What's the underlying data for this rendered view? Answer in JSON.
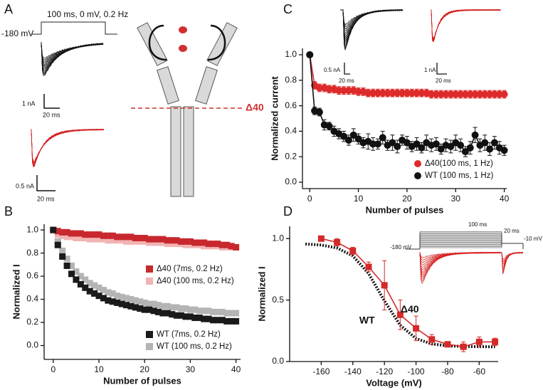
{
  "panel_a": {
    "label": "A",
    "protocol": "100 ms, 0 mV, 0.2 Hz",
    "holding": "-180 mV",
    "scale_labels": [
      "1 nA",
      "20 ms",
      "0.5 nA",
      "20 ms"
    ],
    "cut_label": "Δ40"
  },
  "chart_data": [
    {
      "type": "scatter",
      "panel_label": "B",
      "x_label": "Number of pulses",
      "y_label": "Normalized I",
      "x": [
        0,
        1,
        2,
        3,
        4,
        5,
        6,
        7,
        8,
        9,
        10,
        11,
        12,
        13,
        14,
        15,
        16,
        17,
        18,
        19,
        20,
        21,
        22,
        23,
        24,
        25,
        26,
        27,
        28,
        29,
        30,
        31,
        32,
        33,
        34,
        35,
        36,
        37,
        38,
        39,
        40
      ],
      "xlim": [
        -2,
        41
      ],
      "xticks": [
        0,
        10,
        20,
        30,
        40
      ],
      "ylim": [
        -0.12,
        1.05
      ],
      "yticks": [
        {
          "value": 0,
          "label": "0.0"
        },
        {
          "value": 0.2,
          "label": "0.2"
        },
        {
          "value": 0.4,
          "label": "0.4"
        },
        {
          "value": 0.6,
          "label": "0.6"
        },
        {
          "value": 0.8,
          "label": "0.8"
        },
        {
          "value": 1,
          "label": "1.0"
        }
      ],
      "series": [
        {
          "name": "Δ40 (100 ms, 0.2 Hz)",
          "color": "#f2b3b3",
          "marker": "square",
          "values": [
            1.0,
            0.96,
            0.95,
            0.94,
            0.94,
            0.93,
            0.93,
            0.93,
            0.92,
            0.92,
            0.92,
            0.92,
            0.91,
            0.91,
            0.91,
            0.91,
            0.9,
            0.9,
            0.9,
            0.9,
            0.9,
            0.89,
            0.89,
            0.89,
            0.89,
            0.88,
            0.88,
            0.88,
            0.88,
            0.87,
            0.87,
            0.87,
            0.87,
            0.86,
            0.86,
            0.86,
            0.86,
            0.85,
            0.85,
            0.85,
            0.85
          ]
        },
        {
          "name": "Δ40 (7ms, 0.2 Hz)",
          "color": "#c8282d",
          "marker": "square",
          "values": [
            1.0,
            0.99,
            0.98,
            0.98,
            0.97,
            0.97,
            0.97,
            0.96,
            0.96,
            0.96,
            0.96,
            0.95,
            0.95,
            0.95,
            0.94,
            0.94,
            0.94,
            0.94,
            0.93,
            0.93,
            0.93,
            0.92,
            0.92,
            0.92,
            0.92,
            0.91,
            0.91,
            0.91,
            0.9,
            0.9,
            0.9,
            0.89,
            0.89,
            0.89,
            0.88,
            0.88,
            0.88,
            0.87,
            0.87,
            0.86,
            0.85
          ]
        },
        {
          "name": "WT (100 ms, 0.2 Hz)",
          "color": "#b4b4b4",
          "marker": "square",
          "values": [
            1.0,
            0.9,
            0.82,
            0.75,
            0.69,
            0.64,
            0.6,
            0.57,
            0.54,
            0.52,
            0.5,
            0.48,
            0.46,
            0.45,
            0.43,
            0.42,
            0.41,
            0.4,
            0.39,
            0.38,
            0.37,
            0.36,
            0.36,
            0.35,
            0.34,
            0.34,
            0.33,
            0.33,
            0.32,
            0.32,
            0.31,
            0.31,
            0.3,
            0.3,
            0.3,
            0.29,
            0.29,
            0.29,
            0.28,
            0.28,
            0.28
          ]
        },
        {
          "name": "WT (7ms, 0.2 Hz)",
          "color": "#1a1a1a",
          "marker": "square",
          "values": [
            1.0,
            0.87,
            0.77,
            0.69,
            0.62,
            0.57,
            0.53,
            0.5,
            0.47,
            0.45,
            0.43,
            0.41,
            0.39,
            0.38,
            0.37,
            0.36,
            0.35,
            0.34,
            0.33,
            0.32,
            0.31,
            0.31,
            0.3,
            0.29,
            0.28,
            0.28,
            0.27,
            0.26,
            0.26,
            0.25,
            0.25,
            0.24,
            0.24,
            0.23,
            0.23,
            0.22,
            0.22,
            0.22,
            0.21,
            0.21,
            0.21
          ]
        }
      ]
    },
    {
      "type": "scatter",
      "panel_label": "C",
      "x_label": "Number of pulses",
      "y_label": "Normalized current",
      "inset_labels": [
        "0.5 nA",
        "20 ms",
        "1 nA",
        "20 ms"
      ],
      "x": [
        0,
        1,
        2,
        3,
        4,
        5,
        6,
        7,
        8,
        9,
        10,
        11,
        12,
        13,
        14,
        15,
        16,
        17,
        18,
        19,
        20,
        21,
        22,
        23,
        24,
        25,
        26,
        27,
        28,
        29,
        30,
        31,
        32,
        33,
        34,
        35,
        36,
        37,
        38,
        39,
        40
      ],
      "xlim": [
        -1.5,
        40.5
      ],
      "xticks": [
        0,
        10,
        20,
        30,
        40
      ],
      "ylim": [
        -0.05,
        1.05
      ],
      "yticks": [
        {
          "value": 0,
          "label": "0.0"
        },
        {
          "value": 0.2,
          "label": "0.2"
        },
        {
          "value": 0.4,
          "label": "0.4"
        },
        {
          "value": 0.6,
          "label": "0.6"
        },
        {
          "value": 0.8,
          "label": "0.8"
        },
        {
          "value": 1,
          "label": "1.0"
        }
      ],
      "series": [
        {
          "name": "Δ40(100 ms, 1 Hz)",
          "color": "#dd2a2a",
          "marker": "circle",
          "line": true,
          "values": [
            1.0,
            0.76,
            0.74,
            0.74,
            0.73,
            0.73,
            0.72,
            0.72,
            0.72,
            0.72,
            0.71,
            0.71,
            0.7,
            0.7,
            0.7,
            0.7,
            0.7,
            0.7,
            0.7,
            0.7,
            0.7,
            0.7,
            0.7,
            0.7,
            0.7,
            0.69,
            0.69,
            0.69,
            0.69,
            0.69,
            0.69,
            0.69,
            0.69,
            0.69,
            0.69,
            0.69,
            0.69,
            0.69,
            0.69,
            0.69,
            0.69
          ],
          "errors": [
            0,
            0.03,
            0.03,
            0.03,
            0.03,
            0.03,
            0.03,
            0.03,
            0.03,
            0.03,
            0.03,
            0.03,
            0.03,
            0.03,
            0.03,
            0.03,
            0.03,
            0.03,
            0.03,
            0.03,
            0.03,
            0.03,
            0.03,
            0.03,
            0.03,
            0.03,
            0.03,
            0.03,
            0.03,
            0.03,
            0.03,
            0.03,
            0.03,
            0.03,
            0.03,
            0.03,
            0.03,
            0.03,
            0.03,
            0.03,
            0.03
          ]
        },
        {
          "name": "WT  (100 ms, 1 Hz)",
          "color": "#111111",
          "marker": "circle",
          "line": true,
          "values": [
            1.0,
            0.56,
            0.55,
            0.45,
            0.44,
            0.4,
            0.38,
            0.36,
            0.33,
            0.37,
            0.34,
            0.31,
            0.32,
            0.3,
            0.3,
            0.35,
            0.29,
            0.31,
            0.28,
            0.33,
            0.31,
            0.28,
            0.3,
            0.27,
            0.31,
            0.29,
            0.3,
            0.26,
            0.29,
            0.28,
            0.31,
            0.29,
            0.24,
            0.27,
            0.37,
            0.29,
            0.31,
            0.26,
            0.31,
            0.27,
            0.25
          ],
          "errors": [
            0,
            0.03,
            0.03,
            0.04,
            0.03,
            0.04,
            0.04,
            0.04,
            0.04,
            0.05,
            0.04,
            0.04,
            0.06,
            0.05,
            0.04,
            0.05,
            0.04,
            0.06,
            0.05,
            0.04,
            0.05,
            0.04,
            0.05,
            0.04,
            0.06,
            0.05,
            0.05,
            0.04,
            0.05,
            0.05,
            0.06,
            0.05,
            0.04,
            0.05,
            0.06,
            0.05,
            0.06,
            0.05,
            0.05,
            0.05,
            0.04
          ]
        }
      ]
    },
    {
      "type": "scatter",
      "panel_label": "D",
      "x_label": "Voltage (mV)",
      "y_label": "Normalized I",
      "inset_labels": [
        "100 ms",
        "20 ms",
        "-10 mV",
        "-180 mV"
      ],
      "annotations": [
        "WT",
        "Δ40"
      ],
      "xlim": [
        -180,
        -48
      ],
      "xticks": [
        -160,
        -140,
        -120,
        -100,
        -80,
        -60
      ],
      "ylim": [
        0,
        1.1
      ],
      "yticks": [
        {
          "value": 0,
          "label": "0.0"
        },
        {
          "value": 0.5,
          "label": "0.5"
        },
        {
          "value": 1,
          "label": "1.0"
        }
      ],
      "series": [
        {
          "name": "WT",
          "color": "#111111",
          "marker": "none",
          "line": true,
          "dash": true,
          "x": [
            -170,
            -160,
            -150,
            -140,
            -130,
            -120,
            -110,
            -100,
            -90,
            -80,
            -70,
            -60,
            -50
          ],
          "values": [
            0.956,
            0.948,
            0.924,
            0.86,
            0.715,
            0.493,
            0.295,
            0.187,
            0.143,
            0.128,
            0.123,
            0.121,
            0.12
          ]
        },
        {
          "name": "Δ40",
          "color": "#d42a2a",
          "marker": "square",
          "line": true,
          "x": [
            -160,
            -150,
            -140,
            -130,
            -120,
            -110,
            -100,
            -90,
            -80,
            -70,
            -60,
            -50
          ],
          "values": [
            1.0,
            0.97,
            0.9,
            0.77,
            0.62,
            0.38,
            0.27,
            0.18,
            0.14,
            0.12,
            0.16,
            0.16
          ],
          "errors": [
            0.02,
            0.03,
            0.03,
            0.04,
            0.2,
            0.12,
            0.1,
            0.04,
            0.02,
            0.04,
            0.04,
            0.03
          ]
        }
      ]
    }
  ]
}
